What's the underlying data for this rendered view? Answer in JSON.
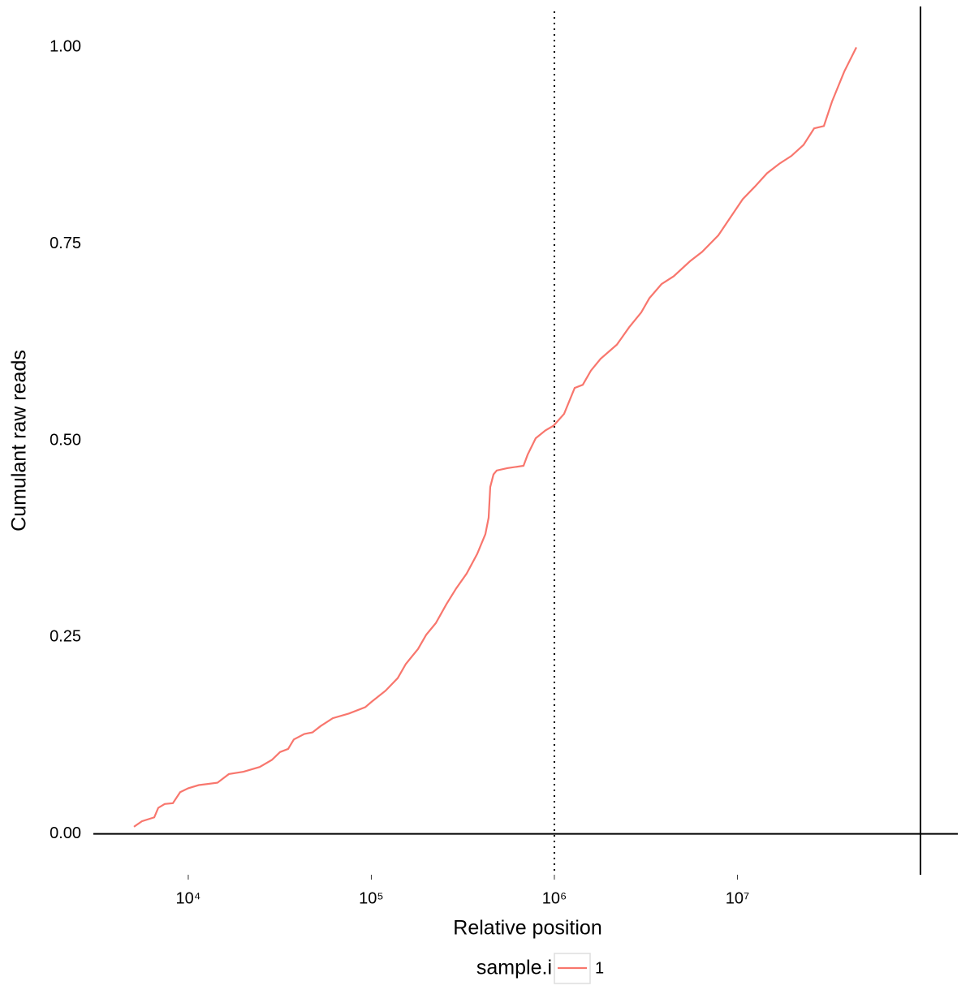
{
  "chart_data": {
    "type": "line",
    "x_label": "Relative position",
    "y_label": "Cumulant raw reads",
    "x_log": true,
    "grid": false,
    "xlim": [
      3030,
      160000000
    ],
    "ylim": [
      -0.052,
      1.052
    ],
    "xticks": [
      {
        "value": 10000,
        "label": "10⁴"
      },
      {
        "value": 100000,
        "label": "10⁵"
      },
      {
        "value": 1000000,
        "label": "10⁶"
      },
      {
        "value": 10000000,
        "label": "10⁷"
      }
    ],
    "yticks": [
      {
        "value": 0,
        "label": "0.00"
      },
      {
        "value": 0.25,
        "label": "0.25"
      },
      {
        "value": 0.5,
        "label": "0.50"
      },
      {
        "value": 0.75,
        "label": "0.75"
      },
      {
        "value": 1,
        "label": "1.00"
      }
    ],
    "hline": 0,
    "vline_solid": 100000000,
    "vline_dotted": 1000000,
    "legend_title": "sample.i",
    "legend_position": "bottom",
    "x": [
      5050,
      5580,
      6520,
      6855,
      7436,
      8240,
      9030,
      10000,
      11420,
      14440,
      16660,
      20030,
      24560,
      28630,
      31710,
      35120,
      37720,
      43060,
      47700,
      52830,
      61560,
      75500,
      92620,
      100500,
      119600,
      139400,
      154400,
      179900,
      199300,
      225200,
      257200,
      290700,
      331900,
      379000,
      419800,
      437400,
      446400,
      465000,
      484300,
      553200,
      678500,
      714100,
      790700,
      893900,
      989900,
      1130000,
      1291000,
      1430000,
      1584000,
      1789000,
      2195000,
      2559000,
      2982000,
      3303000,
      3849000,
      4487000,
      5503000,
      6414000,
      7866000,
      9169000,
      10690000,
      12460000,
      14520000,
      16920000,
      19720000,
      22980000,
      26240000,
      29670000,
      32860000,
      38300000,
      44640000
    ],
    "series": [
      {
        "name": "1",
        "color": "#F8766D",
        "values": [
          0.009,
          0.016,
          0.021,
          0.033,
          0.038,
          0.039,
          0.053,
          0.058,
          0.062,
          0.065,
          0.076,
          0.079,
          0.085,
          0.094,
          0.104,
          0.108,
          0.12,
          0.127,
          0.129,
          0.137,
          0.147,
          0.153,
          0.161,
          0.168,
          0.182,
          0.198,
          0.216,
          0.235,
          0.253,
          0.268,
          0.292,
          0.312,
          0.331,
          0.356,
          0.381,
          0.402,
          0.441,
          0.457,
          0.462,
          0.465,
          0.468,
          0.482,
          0.503,
          0.513,
          0.519,
          0.534,
          0.567,
          0.571,
          0.589,
          0.604,
          0.622,
          0.644,
          0.663,
          0.681,
          0.699,
          0.709,
          0.728,
          0.74,
          0.761,
          0.784,
          0.807,
          0.823,
          0.84,
          0.852,
          0.862,
          0.876,
          0.897,
          0.9,
          0.931,
          0.969,
          1.0
        ]
      }
    ]
  }
}
